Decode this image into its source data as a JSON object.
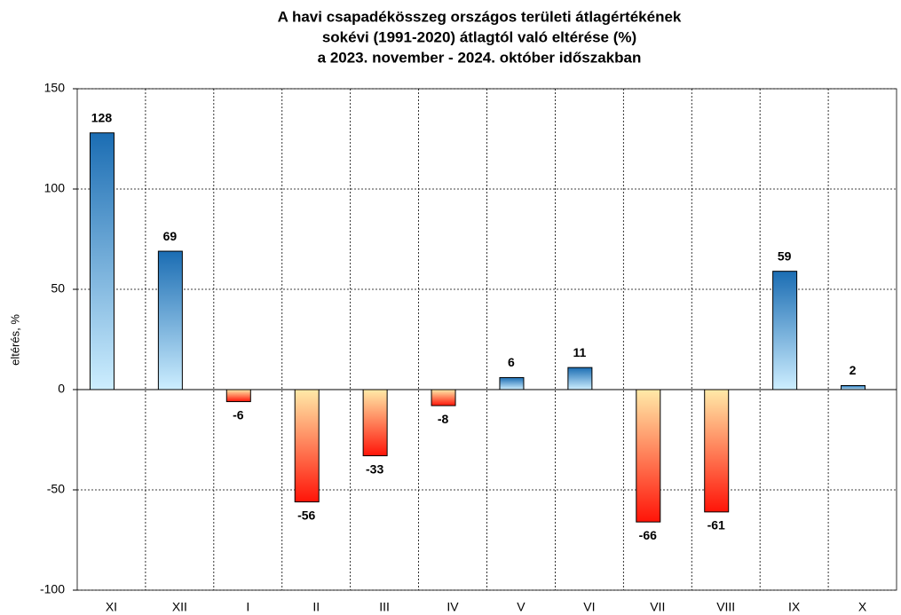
{
  "chart_data": {
    "type": "bar",
    "title": [
      "A havi csapadékösszeg országos területi átlagértékének",
      "sokévi (1991-2020) átlagtól való eltérése (%)",
      "a 2023. november - 2024. október időszakban"
    ],
    "y_label": "eltérés, %",
    "categories": [
      "XI",
      "XII",
      "I",
      "II",
      "III",
      "IV",
      "V",
      "VI",
      "VII",
      "VIII",
      "IX",
      "X"
    ],
    "values": [
      128,
      69,
      -6,
      -56,
      -33,
      -8,
      6,
      11,
      -66,
      -61,
      59,
      2
    ],
    "ylim": [
      -100,
      150
    ],
    "yticks": [
      -100,
      -50,
      0,
      50,
      100,
      150
    ],
    "grid": true,
    "positive_colors": [
      "#1b6db3",
      "#cdeeff"
    ],
    "negative_colors": [
      "#ffeaa8",
      "#ff1408"
    ]
  }
}
